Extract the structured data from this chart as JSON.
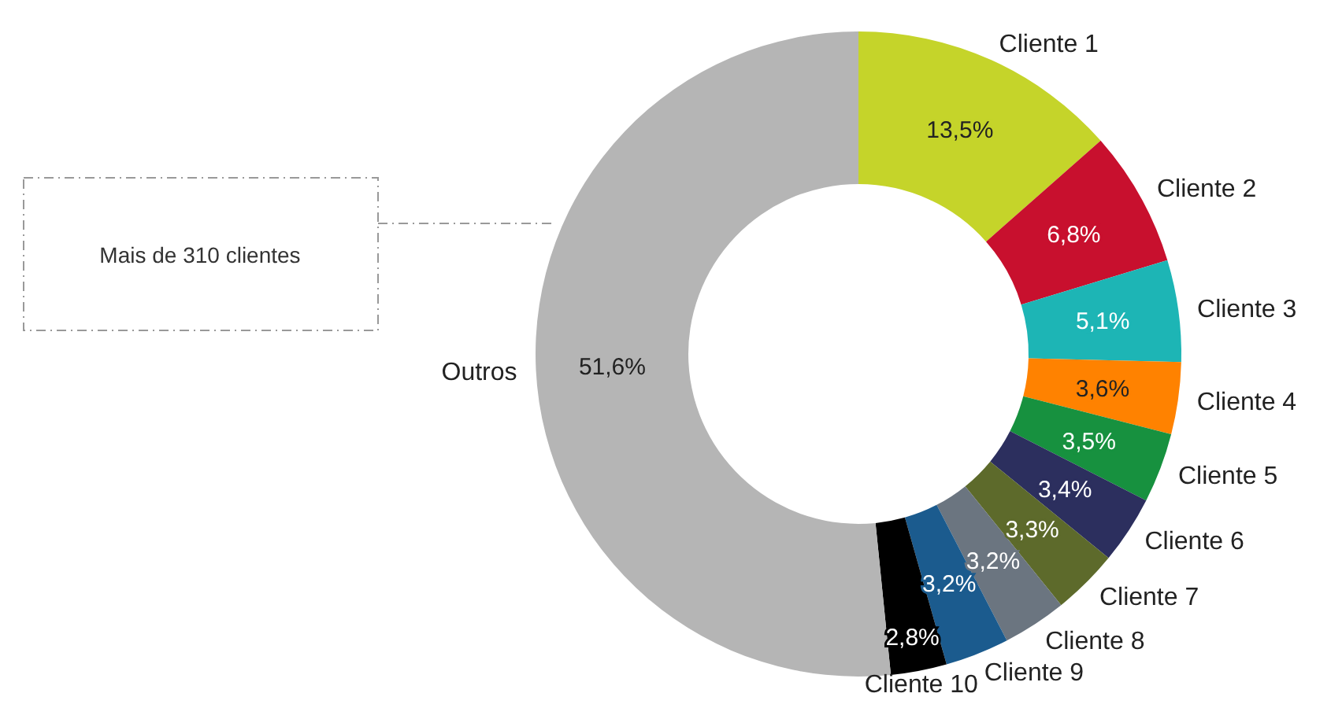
{
  "chart_data": {
    "type": "donut",
    "categories": [
      "Cliente 1",
      "Cliente 2",
      "Cliente 3",
      "Cliente 4",
      "Cliente 5",
      "Cliente 6",
      "Cliente 7",
      "Cliente 8",
      "Cliente 9",
      "Cliente 10",
      "Outros"
    ],
    "values": [
      13.5,
      6.8,
      5.1,
      3.6,
      3.5,
      3.4,
      3.3,
      3.2,
      3.2,
      2.8,
      51.6
    ],
    "value_labels": [
      "13,5%",
      "6,8%",
      "5,1%",
      "3,6%",
      "3,5%",
      "3,4%",
      "3,3%",
      "3,2%",
      "3,2%",
      "2,8%",
      "51,6%"
    ],
    "colors": [
      "#c5d42a",
      "#c8102e",
      "#1db5b5",
      "#ff8200",
      "#17913f",
      "#2c2f5e",
      "#5d6a2b",
      "#6b7580",
      "#1b5b8e",
      "#000000",
      "#b5b5b5"
    ],
    "annotations": [
      "Mais de 310 clientes"
    ]
  }
}
